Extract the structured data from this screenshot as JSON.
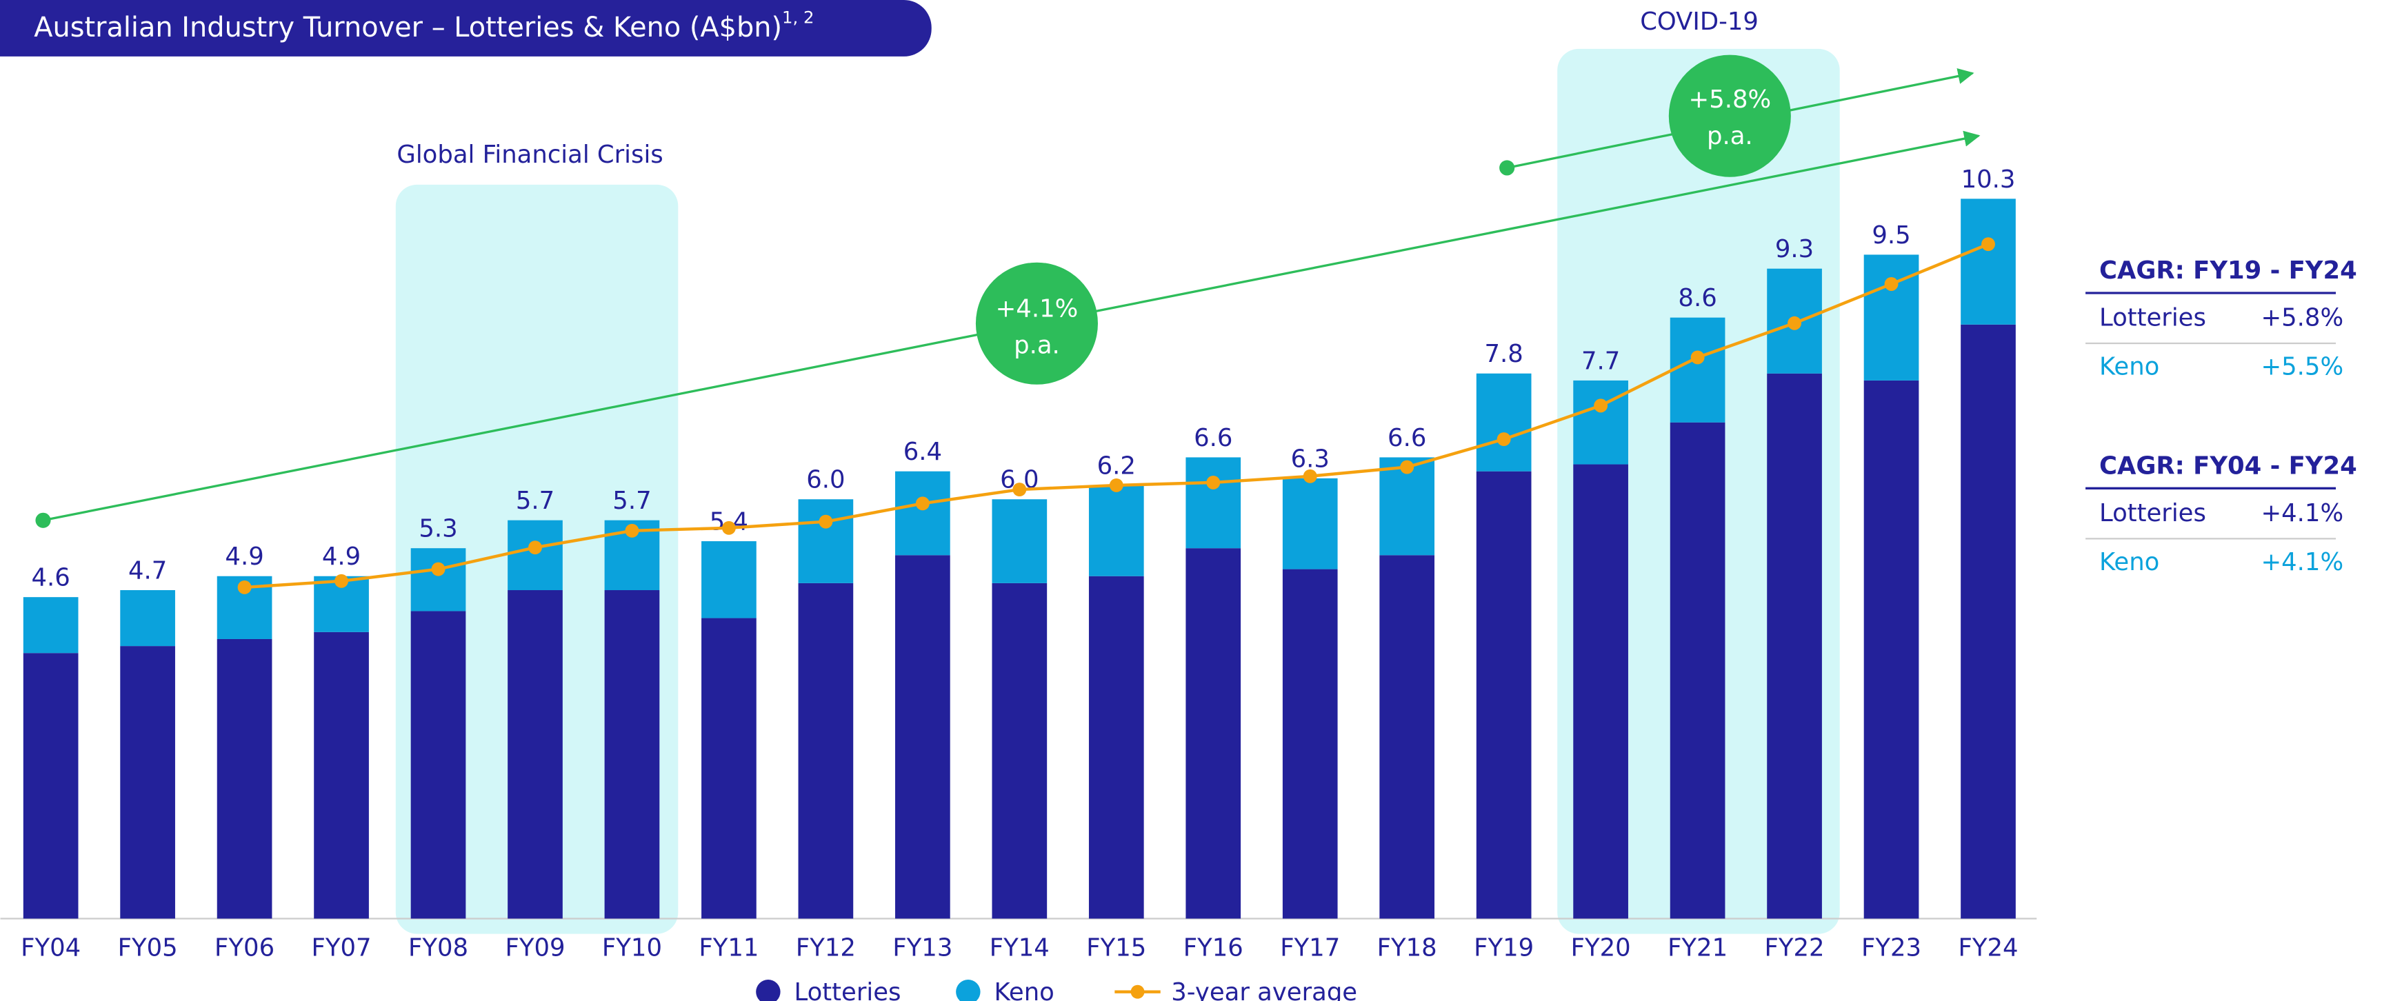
{
  "chart_data": {
    "type": "bar",
    "stacked": true,
    "title": "Australian Industry Turnover – Lotteries & Keno (A$bn)",
    "title_superscript": "1, 2",
    "categories": [
      "FY04",
      "FY05",
      "FY06",
      "FY07",
      "FY08",
      "FY09",
      "FY10",
      "FY11",
      "FY12",
      "FY13",
      "FY14",
      "FY15",
      "FY16",
      "FY17",
      "FY18",
      "FY19",
      "FY20",
      "FY21",
      "FY22",
      "FY23",
      "FY24"
    ],
    "series": [
      {
        "name": "Lotteries",
        "color": "#23219a",
        "values": [
          3.8,
          3.9,
          4.0,
          4.1,
          4.4,
          4.7,
          4.7,
          4.3,
          4.8,
          5.2,
          4.8,
          4.9,
          5.3,
          5.0,
          5.2,
          6.4,
          6.5,
          7.1,
          7.8,
          7.7,
          8.5
        ]
      },
      {
        "name": "Keno",
        "color": "#0ba2dc",
        "values": [
          0.8,
          0.8,
          0.9,
          0.8,
          0.9,
          1.0,
          1.0,
          1.1,
          1.2,
          1.2,
          1.2,
          1.3,
          1.3,
          1.3,
          1.4,
          1.4,
          1.2,
          1.5,
          1.5,
          1.8,
          1.8
        ]
      },
      {
        "name": "3-year average",
        "type": "line",
        "color": "#f5a10f",
        "values": [
          null,
          null,
          4.74,
          4.83,
          5.0,
          5.31,
          5.55,
          5.59,
          5.68,
          5.94,
          6.14,
          6.2,
          6.24,
          6.33,
          6.46,
          6.86,
          7.34,
          8.03,
          8.52,
          9.08,
          9.65
        ]
      }
    ],
    "totals": {
      "values": [
        4.6,
        4.7,
        4.9,
        4.9,
        5.3,
        5.7,
        5.7,
        5.4,
        6.0,
        6.4,
        6.0,
        6.2,
        6.6,
        6.3,
        6.6,
        7.8,
        7.7,
        8.6,
        9.3,
        9.5,
        10.3
      ],
      "value_labels": [
        "4.6",
        "4.7",
        "4.9",
        "4.9",
        "5.3",
        "5.7",
        "5.7",
        "5.4",
        "6.0",
        "6.4",
        "6.0",
        "6.2",
        "6.6",
        "6.3",
        "6.6",
        "7.8",
        "7.7",
        "8.6",
        "9.3",
        "9.5",
        "10.3"
      ]
    },
    "ylim": [
      0,
      12
    ],
    "regions": [
      "Global Financial Crisis",
      "COVID-19"
    ],
    "bubbles": [
      [
        "+4.1%",
        "p.a."
      ],
      [
        "+5.8%",
        "p.a."
      ]
    ],
    "cagr_tables": [
      {
        "title": "CAGR: FY19 - FY24",
        "rows": [
          {
            "name": "Lotteries",
            "value": "+5.8%"
          },
          {
            "name": "Keno",
            "value": "+5.5%"
          }
        ]
      },
      {
        "title": "CAGR: FY04 - FY24",
        "rows": [
          {
            "name": "Lotteries",
            "value": "+4.1%"
          },
          {
            "name": "Keno",
            "value": "+4.1%"
          }
        ]
      }
    ]
  }
}
